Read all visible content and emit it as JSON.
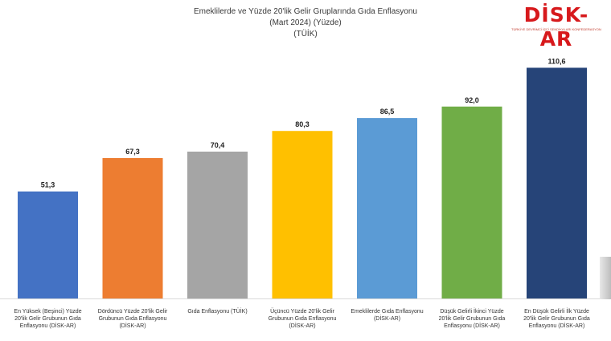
{
  "header": {
    "title_line1": "Emeklilerde ve Yüzde 20'lik Gelir Gruplarında Gıda Enflasyonu",
    "title_line2": "(Mart 2024) (Yüzde)",
    "title_line3": "(TÜİK)"
  },
  "logo": {
    "text": "DİSK-AR",
    "subtitle": "TÜRKİYE DEVRİMCİ İŞÇİ SENDİKALARI KONFEDERASYONU ARAŞTIRMA MERKEZİ",
    "color": "#d7191c"
  },
  "chart_data": {
    "type": "bar",
    "title": "Emeklilerde ve Yüzde 20'lik Gelir Gruplarında Gıda Enflasyonu",
    "subtitle": "(Mart 2024) (Yüzde)",
    "xlabel": "",
    "ylabel": "",
    "ylim": [
      0,
      120
    ],
    "grid": false,
    "legend": "none",
    "categories": [
      [
        "En Yüksek (Beşinci) Yüzde",
        "20'lik Gelir Grubunun Gıda",
        "Enflasyonu (DİSK-AR)"
      ],
      [
        "Dördüncü Yüzde 20'lik Gelir",
        "Grubunun Gıda Enflasyonu",
        "(DİSK-AR)"
      ],
      [
        "Gıda Enflasyonu (TÜİK)"
      ],
      [
        "Üçüncü Yüzde 20'lik Gelir",
        "Grubunun Gıda Enflasyonu",
        "(DİSK-AR)"
      ],
      [
        "Emeklilerde Gıda Enflasyonu",
        "(DİSK-AR)"
      ],
      [
        "Düşük Gelirli İkinci Yüzde",
        "20'lik Gelir Grubunun Gıda",
        "Enflasyonu (DİSK-AR)"
      ],
      [
        "En Düşük Gelirli İlk Yüzde",
        "20'lik Gelir Grubunun Gıda",
        "Enflasyonu (DİSK-AR)"
      ]
    ],
    "values": [
      51.3,
      67.3,
      70.4,
      80.3,
      86.5,
      92.0,
      110.6
    ],
    "value_labels": [
      "51,3",
      "67,3",
      "70,4",
      "80,3",
      "86,5",
      "92,0",
      "110,6"
    ],
    "colors": [
      "#4472c4",
      "#ed7d31",
      "#a5a5a5",
      "#ffc000",
      "#5b9bd5",
      "#70ad47",
      "#264478"
    ]
  }
}
